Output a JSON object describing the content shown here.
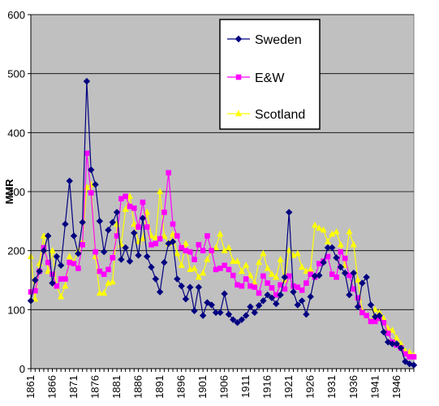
{
  "chart_data": {
    "type": "line",
    "title": "",
    "xlabel": "",
    "ylabel": "MMR",
    "x_range": [
      1861,
      1950
    ],
    "ylim": [
      0,
      600
    ],
    "yticks": [
      0,
      100,
      200,
      300,
      400,
      500,
      600
    ],
    "xticks": [
      1861,
      1866,
      1871,
      1876,
      1881,
      1886,
      1891,
      1896,
      1901,
      1906,
      1911,
      1916,
      1921,
      1926,
      1931,
      1936,
      1941,
      1946
    ],
    "grid": "horizontal",
    "legend": "top-right",
    "plot_background": "#c0c0c0",
    "series": [
      {
        "name": "Sweden",
        "color": "#000080",
        "marker": "diamond",
        "x": [
          1861,
          1862,
          1863,
          1864,
          1865,
          1866,
          1867,
          1868,
          1869,
          1870,
          1871,
          1872,
          1873,
          1874,
          1875,
          1876,
          1877,
          1878,
          1879,
          1880,
          1881,
          1882,
          1883,
          1884,
          1885,
          1886,
          1887,
          1888,
          1889,
          1890,
          1891,
          1892,
          1893,
          1894,
          1895,
          1896,
          1897,
          1898,
          1899,
          1900,
          1901,
          1902,
          1903,
          1904,
          1905,
          1906,
          1907,
          1908,
          1909,
          1910,
          1911,
          1912,
          1913,
          1914,
          1915,
          1916,
          1917,
          1918,
          1919,
          1920,
          1921,
          1922,
          1923,
          1924,
          1925,
          1926,
          1927,
          1928,
          1929,
          1930,
          1931,
          1932,
          1933,
          1934,
          1935,
          1936,
          1937,
          1938,
          1939,
          1940,
          1941,
          1942,
          1943,
          1944,
          1945,
          1946,
          1947,
          1948,
          1949,
          1950
        ],
        "values": [
          115,
          150,
          165,
          200,
          225,
          145,
          190,
          175,
          245,
          318,
          225,
          195,
          248,
          487,
          337,
          312,
          250,
          198,
          235,
          248,
          265,
          185,
          205,
          182,
          230,
          192,
          255,
          190,
          172,
          152,
          130,
          180,
          212,
          215,
          152,
          140,
          118,
          138,
          98,
          138,
          90,
          112,
          108,
          95,
          95,
          127,
          92,
          83,
          78,
          83,
          90,
          105,
          95,
          107,
          115,
          125,
          120,
          110,
          125,
          155,
          265,
          130,
          108,
          115,
          92,
          122,
          157,
          158,
          180,
          205,
          205,
          188,
          172,
          162,
          125,
          162,
          105,
          145,
          155,
          108,
          88,
          90,
          62,
          45,
          42,
          42,
          35,
          12,
          8,
          6
        ]
      },
      {
        "name": "E&W",
        "color": "#ff00ff",
        "marker": "square",
        "x": [
          1861,
          1862,
          1863,
          1864,
          1865,
          1866,
          1867,
          1868,
          1869,
          1870,
          1871,
          1872,
          1873,
          1874,
          1875,
          1876,
          1877,
          1878,
          1879,
          1880,
          1881,
          1882,
          1883,
          1884,
          1885,
          1886,
          1887,
          1888,
          1889,
          1890,
          1891,
          1892,
          1893,
          1894,
          1895,
          1896,
          1897,
          1898,
          1899,
          1900,
          1901,
          1902,
          1903,
          1904,
          1905,
          1906,
          1907,
          1908,
          1909,
          1910,
          1911,
          1912,
          1913,
          1914,
          1915,
          1916,
          1917,
          1918,
          1919,
          1920,
          1921,
          1922,
          1923,
          1924,
          1925,
          1926,
          1927,
          1928,
          1929,
          1930,
          1931,
          1932,
          1933,
          1934,
          1935,
          1936,
          1937,
          1938,
          1939,
          1940,
          1941,
          1942,
          1943,
          1944,
          1945,
          1946,
          1947,
          1948,
          1949,
          1950
        ],
        "values": [
          130,
          132,
          165,
          205,
          180,
          160,
          140,
          152,
          152,
          180,
          178,
          170,
          210,
          365,
          298,
          198,
          165,
          160,
          168,
          188,
          225,
          288,
          292,
          275,
          272,
          240,
          282,
          240,
          210,
          212,
          220,
          265,
          332,
          245,
          225,
          205,
          200,
          198,
          185,
          210,
          200,
          225,
          200,
          168,
          170,
          175,
          168,
          158,
          142,
          140,
          152,
          140,
          138,
          128,
          157,
          145,
          137,
          125,
          142,
          135,
          157,
          140,
          138,
          133,
          145,
          160,
          155,
          178,
          182,
          190,
          160,
          155,
          198,
          187,
          158,
          135,
          120,
          95,
          90,
          80,
          80,
          85,
          78,
          60,
          45,
          40,
          35,
          25,
          20,
          20
        ]
      },
      {
        "name": "Scotland",
        "color": "#ffff00",
        "marker": "triangle",
        "x": [
          1861,
          1862,
          1863,
          1864,
          1865,
          1866,
          1867,
          1868,
          1869,
          1870,
          1871,
          1872,
          1873,
          1874,
          1875,
          1876,
          1877,
          1878,
          1879,
          1880,
          1881,
          1882,
          1883,
          1884,
          1885,
          1886,
          1887,
          1888,
          1889,
          1890,
          1891,
          1892,
          1893,
          1894,
          1895,
          1896,
          1897,
          1898,
          1899,
          1900,
          1901,
          1902,
          1903,
          1904,
          1905,
          1906,
          1907,
          1908,
          1909,
          1910,
          1911,
          1912,
          1913,
          1914,
          1915,
          1916,
          1917,
          1918,
          1919,
          1920,
          1921,
          1922,
          1923,
          1924,
          1925,
          1926,
          1927,
          1928,
          1929,
          1930,
          1931,
          1932,
          1933,
          1934,
          1935,
          1936,
          1937,
          1938,
          1939,
          1940,
          1941,
          1942,
          1943,
          1944,
          1945,
          1946,
          1947,
          1948,
          1949,
          1950
        ],
        "values": [
          190,
          118,
          178,
          225,
          165,
          200,
          140,
          122,
          140,
          190,
          180,
          200,
          215,
          307,
          312,
          190,
          128,
          128,
          145,
          147,
          245,
          210,
          270,
          292,
          245,
          215,
          220,
          265,
          225,
          222,
          300,
          225,
          212,
          228,
          195,
          175,
          212,
          168,
          170,
          155,
          162,
          185,
          200,
          205,
          228,
          200,
          205,
          182,
          182,
          165,
          175,
          158,
          145,
          180,
          195,
          170,
          160,
          155,
          185,
          150,
          200,
          192,
          195,
          172,
          165,
          168,
          243,
          238,
          235,
          215,
          228,
          232,
          210,
          175,
          232,
          210,
          150,
          98,
          90,
          80,
          100,
          95,
          85,
          68,
          65,
          52,
          42,
          30,
          28,
          22
        ]
      }
    ]
  }
}
